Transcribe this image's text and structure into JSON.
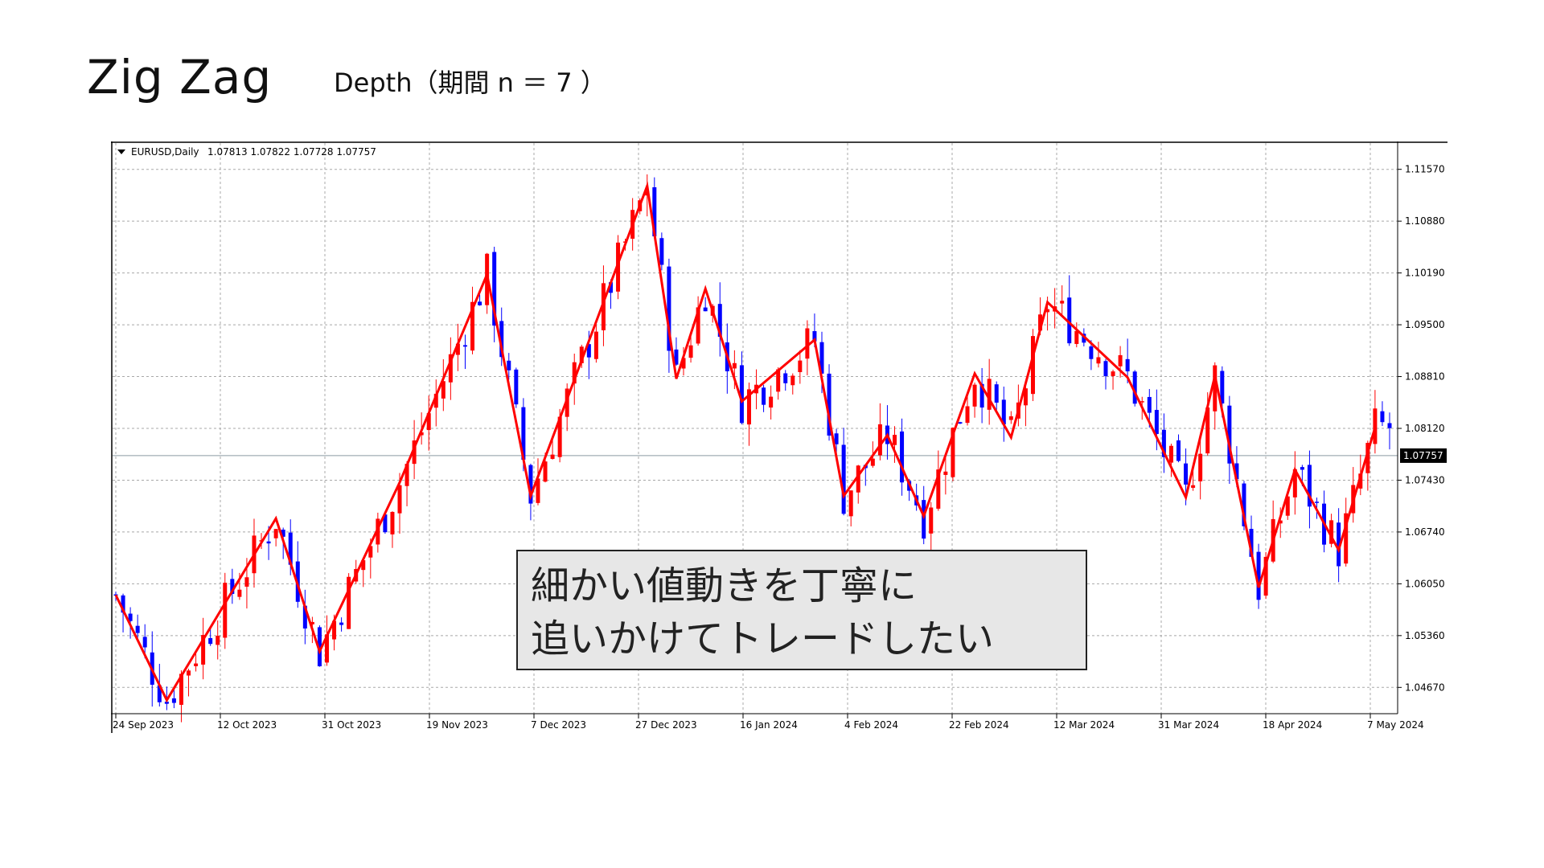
{
  "slide": {
    "title": "Zig Zag",
    "subtitle": "Depth（期間 n ＝ 7 ）"
  },
  "callout": {
    "line1": "細かい値動きを丁寧に",
    "line2": "追いかけてトレードしたい"
  },
  "chart_header": {
    "symbol": "EURUSD,Daily",
    "ohlc": "1.07813 1.07822 1.07728 1.07757"
  },
  "chart_data": {
    "type": "candlestick",
    "y_ticks": [
      "1.11570",
      "1.10880",
      "1.10190",
      "1.09500",
      "1.08810",
      "1.08120",
      "1.07430",
      "1.06740",
      "1.06050",
      "1.05360",
      "1.04670"
    ],
    "y_range": [
      1.0432,
      1.1192
    ],
    "x_ticks": [
      "24 Sep 2023",
      "12 Oct 2023",
      "31 Oct 2023",
      "19 Nov 2023",
      "7 Dec 2023",
      "27 Dec 2023",
      "16 Jan 2024",
      "4 Feb 2024",
      "22 Feb 2024",
      "12 Mar 2024",
      "31 Mar 2024",
      "18 Apr 2024",
      "7 May 2024"
    ],
    "current_price": "1.07757",
    "zigzag": [
      1.059,
      1.045,
      1.0692,
      1.0515,
      1.074,
      1.1017,
      1.0722,
      1.1135,
      1.0878,
      1.0998,
      1.0848,
      1.093,
      1.0722,
      1.0803,
      1.0695,
      1.0885,
      1.08,
      1.098,
      1.088,
      1.072,
      1.0882,
      1.06,
      1.0757,
      1.065,
      1.0813
    ],
    "colors": {
      "bull": "#ff0000",
      "bear": "#0000ff",
      "zigzag": "#ff0000",
      "grid": "#a8a8a8",
      "price_line": "#8a9aa3",
      "price_label_bg": "#000000"
    }
  }
}
